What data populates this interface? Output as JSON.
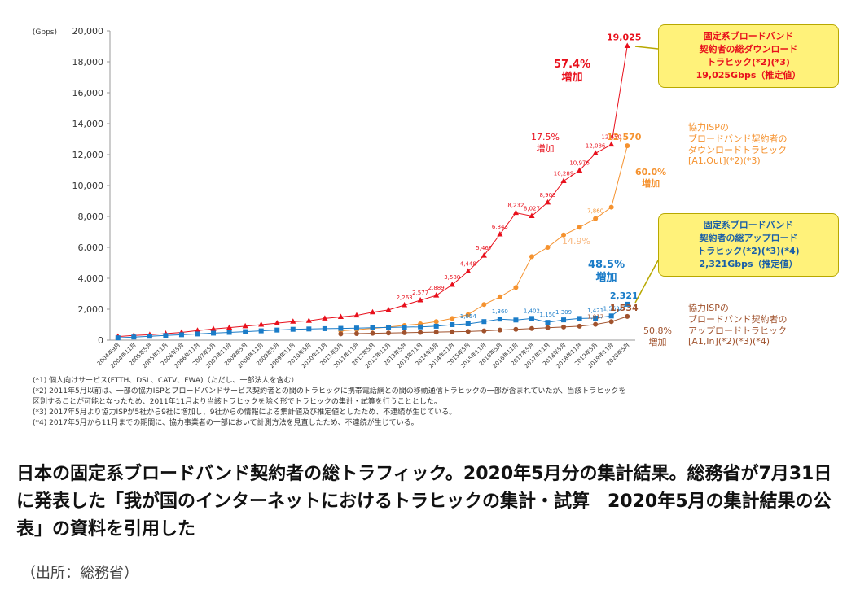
{
  "chart_data": {
    "type": "line",
    "y_unit": "(Gbps)",
    "categories": [
      "2004年9月",
      "2004年11月",
      "2005年5月",
      "2005年11月",
      "2006年5月",
      "2006年11月",
      "2007年5月",
      "2007年11月",
      "2008年5月",
      "2008年11月",
      "2009年5月",
      "2009年11月",
      "2010年5月",
      "2010年11月",
      "2011年5月",
      "2011年11月",
      "2012年5月",
      "2012年11月",
      "2013年5月",
      "2013年11月",
      "2014年5月",
      "2014年11月",
      "2015年5月",
      "2015年11月",
      "2016年5月",
      "2016年11月",
      "2017年5月",
      "2017年11月",
      "2018年5月",
      "2018年11月",
      "2019年5月",
      "2019年11月",
      "2020年5月"
    ],
    "ylim": [
      0,
      20000
    ],
    "yticks": [
      0,
      {
        "value": 2000,
        "label": "2,000"
      },
      {
        "value": 4000,
        "label": "4,000"
      },
      {
        "value": 6000,
        "label": "6,000"
      },
      {
        "value": 8000,
        "label": "8,000"
      },
      {
        "value": 10000,
        "label": "10,000"
      },
      {
        "value": 12000,
        "label": "12,000"
      },
      {
        "value": 14000,
        "label": "14,000"
      },
      {
        "value": 16000,
        "label": "16,000"
      },
      {
        "value": 18000,
        "label": "18,000"
      },
      {
        "value": 20000,
        "label": "20,000"
      }
    ],
    "series": [
      {
        "name": "固定系ブロードバンド契約者の総ダウンロードトラヒック",
        "color": "#e8101c",
        "marker": "triangle",
        "values": [
          230,
          300,
          350,
          420,
          500,
          620,
          720,
          810,
          900,
          1000,
          1100,
          1200,
          1250,
          1400,
          1500,
          1600,
          1800,
          1950,
          2263,
          2577,
          2889,
          3580,
          4448,
          5467,
          6843,
          8232,
          8027,
          8903,
          10289,
          10976,
          12086,
          12650,
          19025
        ],
        "value_labels": [
          null,
          null,
          null,
          null,
          null,
          null,
          null,
          null,
          null,
          null,
          null,
          null,
          null,
          null,
          null,
          null,
          null,
          null,
          "2,263",
          "2,577",
          "2,889",
          "3,580",
          "4,448",
          "5,467",
          "6,843",
          "8,232",
          "8,027",
          "8,903",
          "10,289",
          "10,976",
          "12,086",
          "12,650",
          "19,025"
        ]
      },
      {
        "name": "協力ISPのブロードバンド契約者のダウンロードトラヒック",
        "color": "#f5922f",
        "marker": "circle",
        "values": [
          null,
          null,
          null,
          null,
          null,
          null,
          null,
          null,
          null,
          null,
          null,
          null,
          null,
          null,
          600,
          680,
          760,
          850,
          950,
          1050,
          1200,
          1400,
          1650,
          2300,
          2800,
          3400,
          5400,
          6000,
          6800,
          7300,
          7860,
          8600,
          12570
        ],
        "value_labels": [
          null,
          null,
          null,
          null,
          null,
          null,
          null,
          null,
          null,
          null,
          null,
          null,
          null,
          null,
          null,
          null,
          null,
          null,
          null,
          null,
          null,
          null,
          null,
          null,
          null,
          null,
          null,
          null,
          null,
          null,
          "7,860",
          null,
          "12,570"
        ]
      },
      {
        "name": "固定系ブロードバンド契約者の総アップロードトラヒック",
        "color": "#1a7cc8",
        "marker": "square",
        "values": [
          150,
          200,
          250,
          300,
          350,
          400,
          450,
          500,
          550,
          600,
          650,
          700,
          720,
          740,
          760,
          780,
          800,
          820,
          840,
          860,
          900,
          1000,
          1054,
          1200,
          1360,
          1300,
          1402,
          1150,
          1309,
          1400,
          1421,
          1563,
          2321
        ],
        "value_labels": [
          null,
          null,
          null,
          null,
          null,
          null,
          null,
          null,
          null,
          null,
          null,
          null,
          null,
          null,
          null,
          null,
          null,
          null,
          null,
          null,
          null,
          null,
          "1,054",
          null,
          "1,360",
          null,
          "1,402",
          "1,150",
          "1,309",
          null,
          "1,421",
          "1,563",
          "2,321"
        ]
      },
      {
        "name": "協力ISPのブロードバンド契約者のアップロードトラヒック",
        "color": "#a0522d",
        "marker": "circle",
        "values": [
          null,
          null,
          null,
          null,
          null,
          null,
          null,
          null,
          null,
          null,
          null,
          null,
          null,
          null,
          400,
          420,
          440,
          460,
          480,
          500,
          520,
          540,
          560,
          600,
          650,
          700,
          750,
          800,
          850,
          900,
          1017,
          1200,
          1534
        ],
        "value_labels": [
          null,
          null,
          null,
          null,
          null,
          null,
          null,
          null,
          null,
          null,
          null,
          null,
          null,
          null,
          null,
          null,
          null,
          null,
          null,
          null,
          null,
          null,
          null,
          null,
          null,
          null,
          null,
          null,
          null,
          null,
          "1,017",
          null,
          "1,534"
        ]
      }
    ],
    "annotations": [
      "57.4%\n増加",
      "17.5%\n増加",
      "60.0%\n増加",
      "14.9%",
      "48.5%\n増加",
      "50.8%\n増加",
      "固定系ブロードバンド\n契約者の総ダウンロード\nトラヒック(*2)(*3)\n19,025Gbps（推定値）",
      "協力ISPの\nブロードバンド契約者の\nダウンロードトラヒック\n[A1,Out](*2)(*3)",
      "固定系ブロードバンド\n契約者の総アップロード\nトラヒック(*2)(*3)(*4)\n2,321Gbps（推定値）",
      "協力ISPの\nブロードバンド契約者の\nアップロードトラヒック\n[A1,In](*2)(*3)(*4)"
    ],
    "footnotes": [
      "(*1) 個人向けサービス(FTTH、DSL、CATV、FWA)（ただし、一部法人を含む）",
      "(*2) 2011年5月以前は、一部の協力ISPとブロードバンドサービス契約者との間のトラヒックに携帯電話網との間の移動通信トラヒックの一部が含まれていたが、当該トラヒックを区別することが可能となったため、2011年11月より当該トラヒックを除く形でトラヒックの集計・試算を行うこととした。",
      "(*3) 2017年5月より協力ISPが5社から9社に増加し、9社からの情報による集計値及び推定値としたため、不連続が生じている。",
      "(*4) 2017年5月から11月までの期間に、協力事業者の一部において計測方法を見直したため、不連続が生じている。"
    ]
  },
  "caption": "日本の固定系ブロードバンド契約者の総トラフィック。2020年5月分の集計結果。総務省が7月31日に発表した「我が国のインターネットにおけるトラヒックの集計・試算　2020年5月の集計結果の公表」の資料を引用した",
  "source": "（出所：総務省）"
}
